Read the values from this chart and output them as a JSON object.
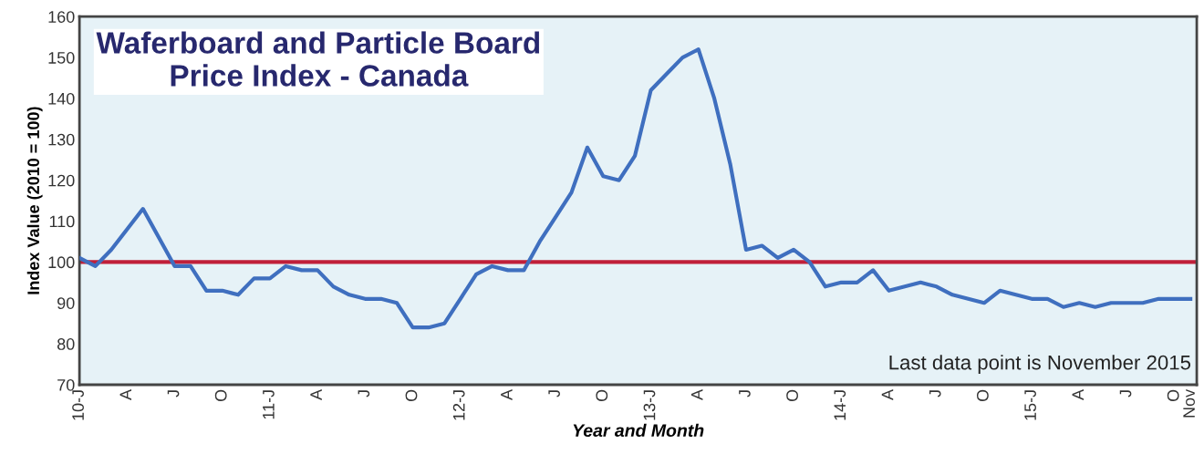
{
  "chart_data": {
    "type": "line",
    "title": "Waferboard and Particle Board\nPrice Index - Canada",
    "xlabel": "Year and Month",
    "ylabel": "Index Value (2010 = 100)",
    "categories": [
      "10-J",
      null,
      null,
      "A",
      null,
      null,
      "J",
      null,
      null,
      "O",
      null,
      null,
      "11-J",
      null,
      null,
      "A",
      null,
      null,
      "J",
      null,
      null,
      "O",
      null,
      null,
      "12-J",
      null,
      null,
      "A",
      null,
      null,
      "J",
      null,
      null,
      "O",
      null,
      null,
      "13-J",
      null,
      null,
      "A",
      null,
      null,
      "J",
      null,
      null,
      "O",
      null,
      null,
      "14-J",
      null,
      null,
      "A",
      null,
      null,
      "J",
      null,
      null,
      "O",
      null,
      null,
      "15-J",
      null,
      null,
      "A",
      null,
      null,
      "J",
      null,
      null,
      "O",
      "Nov"
    ],
    "series": [
      {
        "color": "#3f6fbf",
        "values": [
          101,
          99,
          103,
          108,
          113,
          106,
          99,
          99,
          93,
          93,
          92,
          96,
          96,
          99,
          98,
          98,
          94,
          92,
          91,
          91,
          90,
          84,
          84,
          85,
          91,
          97,
          99,
          98,
          98,
          105,
          111,
          117,
          128,
          121,
          120,
          126,
          142,
          146,
          150,
          152,
          140,
          124,
          103,
          104,
          101,
          103,
          100,
          94,
          95,
          95,
          98,
          93,
          94,
          95,
          94,
          92,
          91,
          90,
          93,
          92,
          91,
          91,
          89,
          90,
          89,
          90,
          90,
          90,
          91,
          91,
          91
        ]
      }
    ],
    "ylim": [
      70,
      160
    ],
    "yticks": [
      70,
      80,
      90,
      100,
      110,
      120,
      130,
      140,
      150,
      160
    ],
    "ref_lines": [
      {
        "axis": "y",
        "value": 100,
        "color": "#c0203a"
      }
    ],
    "annotations": [
      "Last data point is November 2015"
    ],
    "grid": false,
    "legend": false
  }
}
